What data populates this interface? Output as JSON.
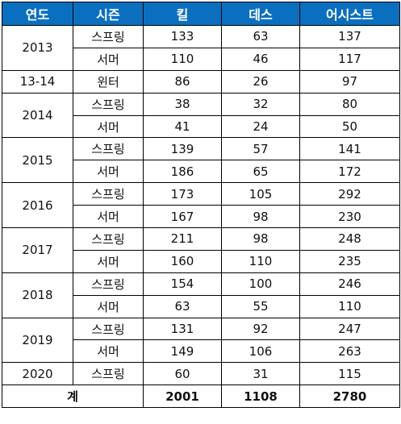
{
  "colors": {
    "header_bg": "#0b6fc0",
    "header_text": "#ffffff",
    "border": "#000000"
  },
  "header": {
    "year": "연도",
    "season": "시즌",
    "kill": "킬",
    "death": "데스",
    "assist": "어시스트"
  },
  "rows": [
    {
      "year": "2013",
      "year_rowspan": 2,
      "season": "스프링",
      "kill": "133",
      "death": "63",
      "assist": "137"
    },
    {
      "year": "",
      "season": "서머",
      "kill": "110",
      "death": "46",
      "assist": "117"
    },
    {
      "year": "13-14",
      "year_rowspan": 1,
      "season": "윈터",
      "kill": "86",
      "death": "26",
      "assist": "97"
    },
    {
      "year": "2014",
      "year_rowspan": 2,
      "season": "스프링",
      "kill": "38",
      "death": "32",
      "assist": "80"
    },
    {
      "year": "",
      "season": "서머",
      "kill": "41",
      "death": "24",
      "assist": "50"
    },
    {
      "year": "2015",
      "year_rowspan": 2,
      "season": "스프링",
      "kill": "139",
      "death": "57",
      "assist": "141"
    },
    {
      "year": "",
      "season": "서머",
      "kill": "186",
      "death": "65",
      "assist": "172"
    },
    {
      "year": "2016",
      "year_rowspan": 2,
      "season": "스프링",
      "kill": "173",
      "death": "105",
      "assist": "292"
    },
    {
      "year": "",
      "season": "서머",
      "kill": "167",
      "death": "98",
      "assist": "230"
    },
    {
      "year": "2017",
      "year_rowspan": 2,
      "season": "스프링",
      "kill": "211",
      "death": "98",
      "assist": "248"
    },
    {
      "year": "",
      "season": "서머",
      "kill": "160",
      "death": "110",
      "assist": "235"
    },
    {
      "year": "2018",
      "year_rowspan": 2,
      "season": "스프링",
      "kill": "154",
      "death": "100",
      "assist": "246"
    },
    {
      "year": "",
      "season": "서머",
      "kill": "63",
      "death": "55",
      "assist": "110"
    },
    {
      "year": "2019",
      "year_rowspan": 2,
      "season": "스프링",
      "kill": "131",
      "death": "92",
      "assist": "247"
    },
    {
      "year": "",
      "season": "서머",
      "kill": "149",
      "death": "106",
      "assist": "263"
    },
    {
      "year": "2020",
      "year_rowspan": 1,
      "season": "스프링",
      "kill": "60",
      "death": "31",
      "assist": "115"
    }
  ],
  "total": {
    "label": "계",
    "kill": "2001",
    "death": "1108",
    "assist": "2780"
  }
}
